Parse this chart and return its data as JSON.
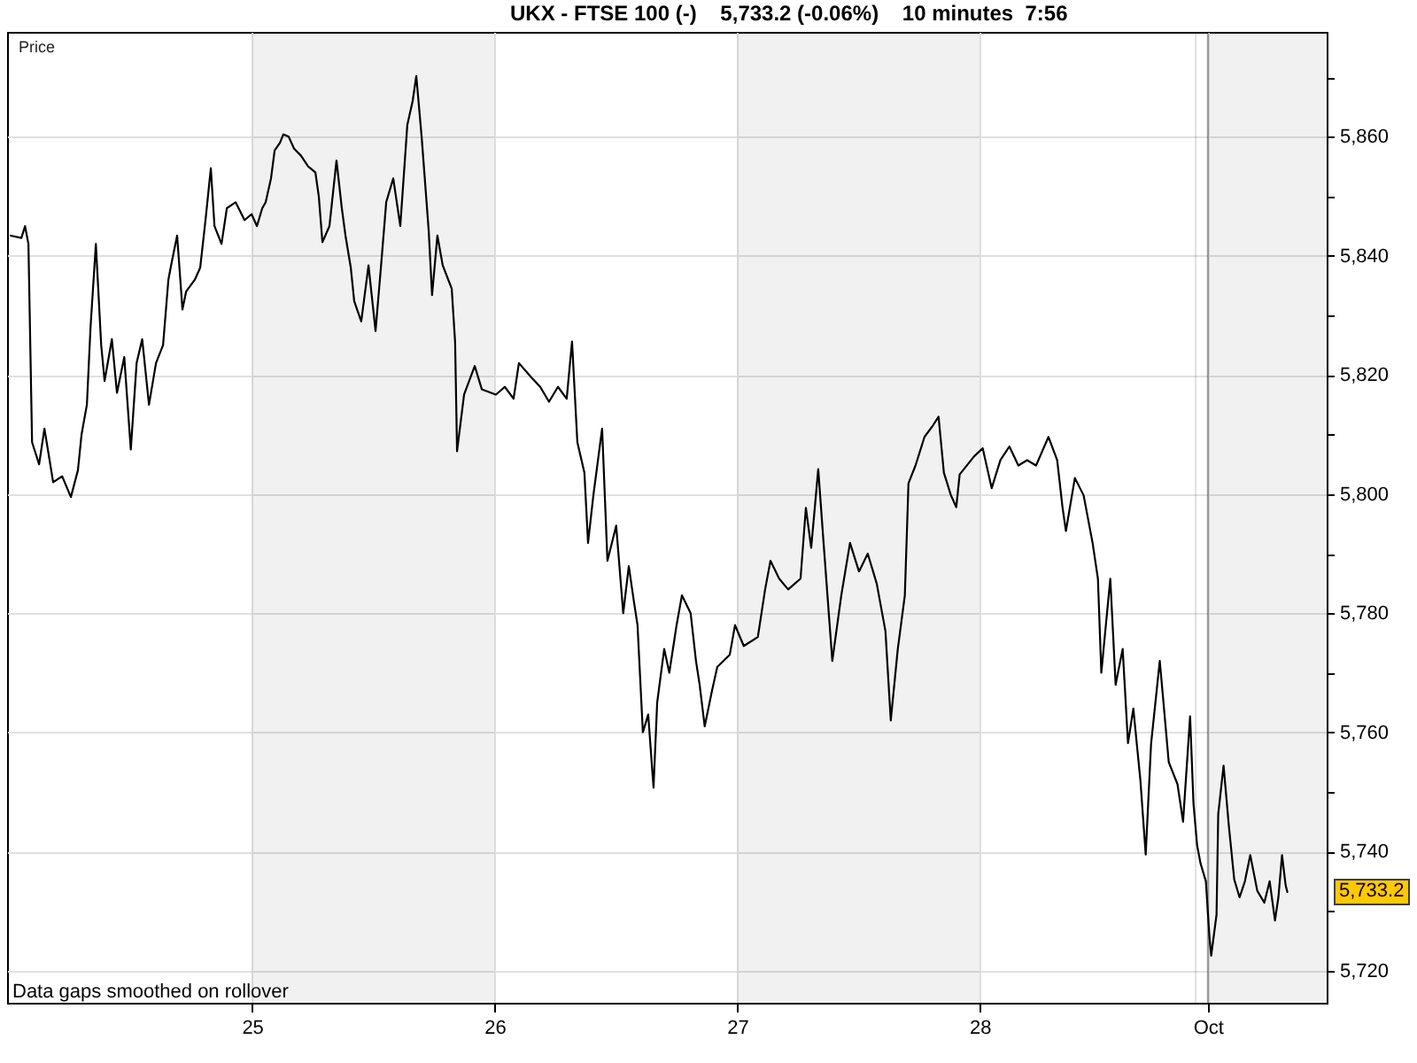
{
  "chart_data": {
    "type": "line",
    "title": "UKX - FTSE 100 (-)    5,733.2 (-0.06%)    10 minutes  7:56",
    "ylabel": "Price",
    "x": [
      24.005,
      24.049,
      24.064,
      24.078,
      24.093,
      24.122,
      24.144,
      24.18,
      24.217,
      24.253,
      24.282,
      24.297,
      24.319,
      24.334,
      24.356,
      24.378,
      24.392,
      24.422,
      24.443,
      24.473,
      24.5,
      24.524,
      24.547,
      24.575,
      24.604,
      24.633,
      24.655,
      24.669,
      24.691,
      24.713,
      24.728,
      24.764,
      24.786,
      24.808,
      24.83,
      24.845,
      24.874,
      24.896,
      24.932,
      24.969,
      24.998,
      25.02,
      25.042,
      25.056,
      25.078,
      25.093,
      25.115,
      25.129,
      25.151,
      25.173,
      25.202,
      25.231,
      25.261,
      25.275,
      25.29,
      25.319,
      25.348,
      25.37,
      25.385,
      25.407,
      25.421,
      25.45,
      25.48,
      25.509,
      25.531,
      25.553,
      25.582,
      25.611,
      25.64,
      25.662,
      25.677,
      25.699,
      25.728,
      25.742,
      25.764,
      25.786,
      25.823,
      25.837,
      25.845,
      25.874,
      25.918,
      25.947,
      26.005,
      26.042,
      26.078,
      26.1,
      26.151,
      26.188,
      26.224,
      26.261,
      26.297,
      26.319,
      26.341,
      26.37,
      26.385,
      26.407,
      26.443,
      26.465,
      26.501,
      26.53,
      26.553,
      26.574,
      26.589,
      26.611,
      26.633,
      26.655,
      26.67,
      26.699,
      26.72,
      26.75,
      26.772,
      26.808,
      26.83,
      26.845,
      26.866,
      26.896,
      26.918,
      26.969,
      26.991,
      27.027,
      27.085,
      27.115,
      27.137,
      27.173,
      27.21,
      27.261,
      27.283,
      27.305,
      27.334,
      27.356,
      27.392,
      27.429,
      27.465,
      27.502,
      27.538,
      27.575,
      27.611,
      27.633,
      27.662,
      27.691,
      27.706,
      27.735,
      27.772,
      27.808,
      27.83,
      27.852,
      27.881,
      27.903,
      27.917,
      27.976,
      28.012,
      28.049,
      28.085,
      28.122,
      28.159,
      28.195,
      28.232,
      28.283,
      28.319,
      28.341,
      28.355,
      28.392,
      28.428,
      28.465,
      28.487,
      28.501,
      28.538,
      28.56,
      28.589,
      28.611,
      28.633,
      28.662,
      28.684,
      28.706,
      28.742,
      28.779,
      28.815,
      28.838,
      28.867,
      28.881,
      28.896,
      28.91,
      28.932,
      28.947,
      28.954,
      28.976,
      28.983,
      29.005,
      29.027,
      29.049,
      29.071,
      29.093,
      29.115,
      29.144,
      29.173,
      29.195,
      29.217,
      29.231,
      29.246,
      29.261,
      29.268
    ],
    "values": [
      5843.4,
      5843,
      5845,
      5842,
      5808.7,
      5805,
      5811,
      5802,
      5803,
      5799.5,
      5804,
      5810,
      5815,
      5828,
      5842,
      5825,
      5819,
      5826,
      5817,
      5823,
      5807.5,
      5822,
      5826,
      5815,
      5822,
      5825,
      5836,
      5839,
      5843.4,
      5831,
      5834,
      5836,
      5838,
      5846,
      5854.7,
      5845,
      5842,
      5848,
      5849,
      5846,
      5847,
      5845,
      5848,
      5849,
      5853,
      5857.7,
      5859,
      5860.4,
      5860,
      5858,
      5856.8,
      5855,
      5854,
      5850,
      5842.3,
      5845,
      5856,
      5848,
      5843.4,
      5838,
      5832.4,
      5829,
      5838.4,
      5827.4,
      5838,
      5849,
      5853,
      5845,
      5862,
      5866,
      5870.2,
      5860,
      5844.3,
      5833.4,
      5843.4,
      5838.4,
      5834.5,
      5825.5,
      5807.2,
      5816.7,
      5821.5,
      5817.6,
      5816.7,
      5818,
      5816,
      5822,
      5819.6,
      5818,
      5815.5,
      5818,
      5816,
      5825.6,
      5808.7,
      5803.6,
      5791.8,
      5799.8,
      5811,
      5788.8,
      5794.7,
      5780,
      5787.9,
      5782,
      5778,
      5760,
      5763,
      5750.7,
      5765,
      5774,
      5770,
      5778,
      5783,
      5780,
      5772,
      5768,
      5761,
      5767,
      5771,
      5773,
      5778,
      5774.5,
      5776,
      5784,
      5788.8,
      5785.8,
      5784,
      5785.8,
      5797.7,
      5791,
      5804.2,
      5791.8,
      5772,
      5783,
      5791.8,
      5787,
      5790,
      5785,
      5777,
      5762,
      5774,
      5783,
      5801.8,
      5804.8,
      5809.6,
      5811.6,
      5813,
      5803.6,
      5799.8,
      5797.8,
      5803.3,
      5806.3,
      5807.7,
      5801,
      5805.7,
      5808,
      5804.8,
      5805.7,
      5804.8,
      5809.6,
      5805.7,
      5797.8,
      5793.8,
      5802.7,
      5799.8,
      5791.8,
      5785.8,
      5770,
      5785.8,
      5768,
      5774,
      5758.2,
      5764,
      5752,
      5739.5,
      5758,
      5772,
      5755,
      5751.3,
      5745,
      5762.7,
      5748,
      5741,
      5738,
      5735,
      5725.5,
      5722.5,
      5729.4,
      5746.3,
      5754.4,
      5744.2,
      5735.3,
      5732.3,
      5735,
      5739.4,
      5733.4,
      5731.4,
      5735,
      5728.4,
      5732.3,
      5739.4,
      5734.3,
      5733.2
    ],
    "color": "#000000",
    "xlim": [
      23.99,
      29.43
    ],
    "xticks": [
      25,
      26,
      27,
      28,
      {
        "value": 28.94,
        "label": "Oct"
      }
    ],
    "ylim": [
      5714.6,
      5877.6
    ],
    "yticks": [
      {
        "value": 5720,
        "label": "5,720"
      },
      {
        "value": 5730,
        "label": null
      },
      {
        "value": 5740,
        "label": "5,740"
      },
      {
        "value": 5750,
        "label": null
      },
      {
        "value": 5760,
        "label": "5,760"
      },
      {
        "value": 5770,
        "label": null
      },
      {
        "value": 5780,
        "label": "5,780"
      },
      {
        "value": 5790,
        "label": null
      },
      {
        "value": 5800,
        "label": "5,800"
      },
      {
        "value": 5810,
        "label": null
      },
      {
        "value": 5820,
        "label": "5,820"
      },
      {
        "value": 5830,
        "label": null
      },
      {
        "value": 5840,
        "label": "5,840"
      },
      {
        "value": 5850,
        "label": null
      },
      {
        "value": 5860,
        "label": "5,860"
      },
      {
        "value": 5870,
        "label": null
      }
    ],
    "grid": true,
    "bands": [
      {
        "axis": "x",
        "from": 25,
        "to": 26,
        "color": "#f1f1f1"
      },
      {
        "axis": "x",
        "from": 27,
        "to": 28,
        "color": "#f1f1f1"
      },
      {
        "axis": "x",
        "from": 28.94,
        "to": 29.43,
        "color": "#f1f1f1"
      }
    ],
    "ref_lines": [
      {
        "axis": "x",
        "value": 28.89,
        "color": "#e0e0e0"
      },
      {
        "axis": "x",
        "value": 28.94,
        "color": "#a0a0a0"
      }
    ],
    "annotations": [
      "Data gaps smoothed on rollover",
      {
        "text": "5,733.2",
        "x": 29.268,
        "y": 5733.2
      }
    ]
  }
}
